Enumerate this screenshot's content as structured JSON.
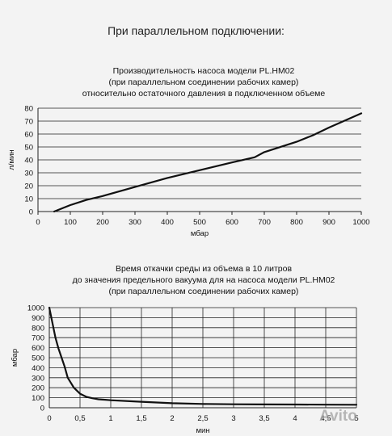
{
  "heading": "При параллельном подключении:",
  "watermark": "Avito",
  "chart_data": [
    {
      "type": "line",
      "title_lines": [
        "Производительность насоса модели PL.HM02",
        "(при параллельном соединении рабочих камер)",
        "относительно остаточного давления в подключенном объеме"
      ],
      "xlabel": "мбар",
      "ylabel": "л/мин",
      "xlim": [
        0,
        1000
      ],
      "ylim": [
        0,
        80
      ],
      "xticks": [
        "0",
        "100",
        "200",
        "300",
        "400",
        "500",
        "600",
        "700",
        "800",
        "900",
        "1000"
      ],
      "yticks": [
        "0",
        "10",
        "20",
        "30",
        "40",
        "50",
        "60",
        "70",
        "80"
      ],
      "grid": "horizontal",
      "series": [
        {
          "x": [
            50,
            100,
            150,
            200,
            300,
            400,
            500,
            600,
            670,
            700,
            800,
            850,
            900,
            1000
          ],
          "y": [
            0,
            5,
            9,
            12,
            19,
            26,
            32,
            38,
            42,
            46,
            54,
            59,
            65,
            76
          ]
        }
      ]
    },
    {
      "type": "line",
      "title_lines": [
        "Время откачки среды из объема в 10 литров",
        "до значения предельного вакуума для на насоса модели PL.HM02",
        "(при параллельном соединении рабочих камер)"
      ],
      "xlabel": "мин",
      "ylabel": "мбар",
      "xlim": [
        0,
        5
      ],
      "ylim": [
        0,
        1000
      ],
      "xticks": [
        "0",
        "0,5",
        "1",
        "1,5",
        "2",
        "2,5",
        "3",
        "3,5",
        "4",
        "4,5",
        "5"
      ],
      "yticks": [
        "0",
        "100",
        "200",
        "300",
        "400",
        "500",
        "600",
        "700",
        "800",
        "900",
        "1000"
      ],
      "grid": "both",
      "series": [
        {
          "x": [
            0,
            0.05,
            0.1,
            0.15,
            0.2,
            0.25,
            0.3,
            0.4,
            0.5,
            0.6,
            0.7,
            0.8,
            1,
            1.5,
            2,
            2.5,
            3,
            3.5,
            4,
            4.5,
            5
          ],
          "y": [
            1000,
            850,
            700,
            590,
            500,
            410,
            300,
            200,
            140,
            110,
            95,
            85,
            75,
            60,
            45,
            38,
            35,
            33,
            32,
            31,
            30
          ]
        }
      ]
    }
  ]
}
